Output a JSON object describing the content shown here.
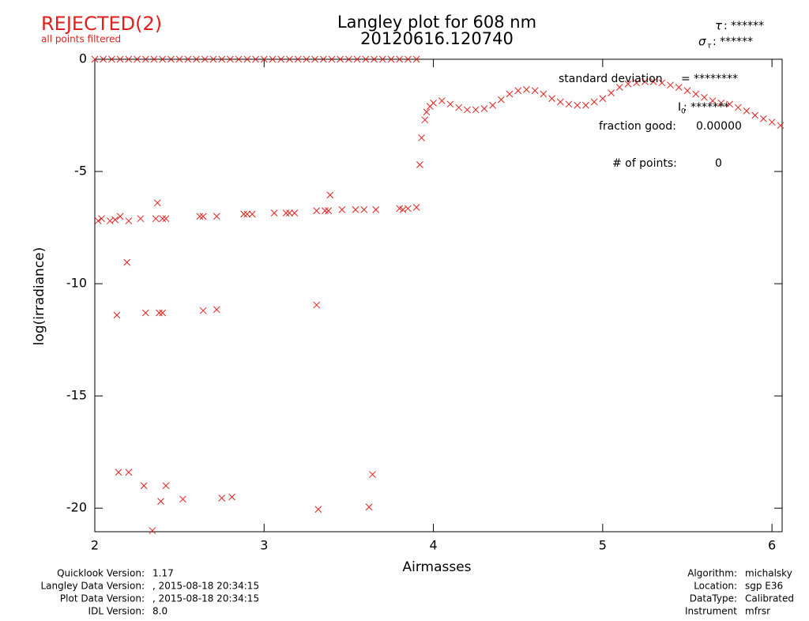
{
  "header": {
    "status": "REJECTED(2)",
    "status_note": "all points filtered",
    "tau_symbol": "τ",
    "tau_value": ": ******",
    "sigma_symbol": "σ",
    "sigma_sub": "τ",
    "sigma_value": ": ******"
  },
  "chart_data": {
    "type": "scatter",
    "title": "Langley plot for 608 nm",
    "subtitle": "20120616.120740",
    "x_label": "Airmasses",
    "y_label": "log(irradiance)",
    "xlim": [
      2,
      6.06
    ],
    "ylim": [
      -21.05,
      0
    ],
    "xticks": [
      2,
      3,
      4,
      5,
      6
    ],
    "yticks": [
      0,
      -5,
      -10,
      -15,
      -20
    ],
    "series": [
      {
        "color": "#e0201c",
        "x": [
          2.0,
          2.05,
          2.1,
          2.15,
          2.2,
          2.25,
          2.3,
          2.35,
          2.4,
          2.45,
          2.5,
          2.55,
          2.6,
          2.65,
          2.7,
          2.75,
          2.8,
          2.85,
          2.9,
          2.95,
          3.0,
          3.05,
          3.1,
          3.15,
          3.2,
          3.25,
          3.3,
          3.35,
          3.4,
          3.45,
          3.5,
          3.55,
          3.6,
          3.65,
          3.7,
          3.75,
          3.8,
          3.85,
          3.9,
          2.02,
          2.04,
          2.09,
          2.12,
          2.15,
          2.2,
          2.27,
          2.36,
          2.4,
          2.42,
          2.62,
          2.64,
          2.72,
          2.88,
          2.9,
          2.93,
          3.06,
          3.13,
          3.15,
          3.18,
          3.31,
          3.36,
          3.38,
          3.46,
          3.54,
          3.59,
          3.66,
          3.8,
          3.82,
          3.85,
          3.9,
          2.37,
          3.39,
          2.19,
          2.13,
          2.3,
          2.38,
          2.4,
          2.64,
          2.72,
          3.31,
          2.14,
          2.2,
          2.29,
          2.42,
          2.39,
          2.52,
          2.75,
          2.81,
          3.32,
          3.62,
          3.64,
          2.34,
          3.92,
          3.93,
          3.95,
          3.96,
          3.98,
          4.0,
          4.05,
          4.1,
          4.15,
          4.2,
          4.25,
          4.3,
          4.35,
          4.4,
          4.45,
          4.5,
          4.55,
          4.6,
          4.65,
          4.7,
          4.75,
          4.8,
          4.85,
          4.9,
          4.95,
          5.0,
          5.05,
          5.1,
          5.15,
          5.2,
          5.25,
          5.3,
          5.35,
          5.4,
          5.45,
          5.5,
          5.55,
          5.6,
          5.65,
          5.7,
          5.75,
          5.8,
          5.85,
          5.9,
          5.95,
          6.0,
          6.05
        ],
        "values": [
          0,
          0,
          0,
          0,
          0,
          0,
          0,
          0,
          0,
          0,
          0,
          0,
          0,
          0,
          0,
          0,
          0,
          0,
          0,
          0,
          0,
          0,
          0,
          0,
          0,
          0,
          0,
          0,
          0,
          0,
          0,
          0,
          0,
          0,
          0,
          0,
          0,
          0,
          0,
          -7.2,
          -7.1,
          -7.2,
          -7.15,
          -7.0,
          -7.2,
          -7.1,
          -7.1,
          -7.1,
          -7.1,
          -7.0,
          -7.0,
          -7.0,
          -6.9,
          -6.9,
          -6.9,
          -6.85,
          -6.85,
          -6.85,
          -6.85,
          -6.75,
          -6.75,
          -6.75,
          -6.7,
          -6.7,
          -6.7,
          -6.7,
          -6.65,
          -6.7,
          -6.65,
          -6.6,
          -6.4,
          -6.05,
          -9.05,
          -11.4,
          -11.3,
          -11.3,
          -11.3,
          -11.2,
          -11.15,
          -10.95,
          -18.4,
          -18.4,
          -19.0,
          -19.0,
          -19.7,
          -19.6,
          -19.55,
          -19.5,
          -20.05,
          -19.95,
          -18.5,
          -21.0,
          -4.7,
          -3.5,
          -2.7,
          -2.35,
          -2.1,
          -1.95,
          -1.85,
          -2.0,
          -2.15,
          -2.25,
          -2.25,
          -2.2,
          -2.05,
          -1.8,
          -1.55,
          -1.4,
          -1.35,
          -1.4,
          -1.55,
          -1.75,
          -1.9,
          -2.0,
          -2.05,
          -2.05,
          -1.9,
          -1.75,
          -1.5,
          -1.25,
          -1.1,
          -1.05,
          -1.0,
          -1.0,
          -1.05,
          -1.15,
          -1.25,
          -1.4,
          -1.55,
          -1.7,
          -1.85,
          -1.95,
          -2.0,
          -2.15,
          -2.3,
          -2.5,
          -2.65,
          -2.8,
          -2.95
        ]
      }
    ],
    "annotations": [
      {
        "label": "standard deviation",
        "value": "= ********"
      },
      {
        "label": "I",
        "sub": "0",
        "value": ": *******"
      },
      {
        "label": "fraction good:",
        "value": "0.00000"
      },
      {
        "label": "# of points:",
        "value": "0"
      }
    ]
  },
  "footer": {
    "left": [
      {
        "label": "Quicklook Version:",
        "value": "1.17"
      },
      {
        "label": "Langley Data Version:",
        "value": ", 2015-08-18 20:34:15"
      },
      {
        "label": "Plot Data Version:",
        "value": ", 2015-08-18 20:34:15"
      },
      {
        "label": "IDL Version:",
        "value": "8.0"
      }
    ],
    "right": [
      {
        "label": "Algorithm:",
        "value": "michalsky"
      },
      {
        "label": "Location:",
        "value": "sgp E36"
      },
      {
        "label": "DataType:",
        "value": "Calibrated"
      },
      {
        "label": "Instrument",
        "value": "mfrsr"
      }
    ]
  }
}
